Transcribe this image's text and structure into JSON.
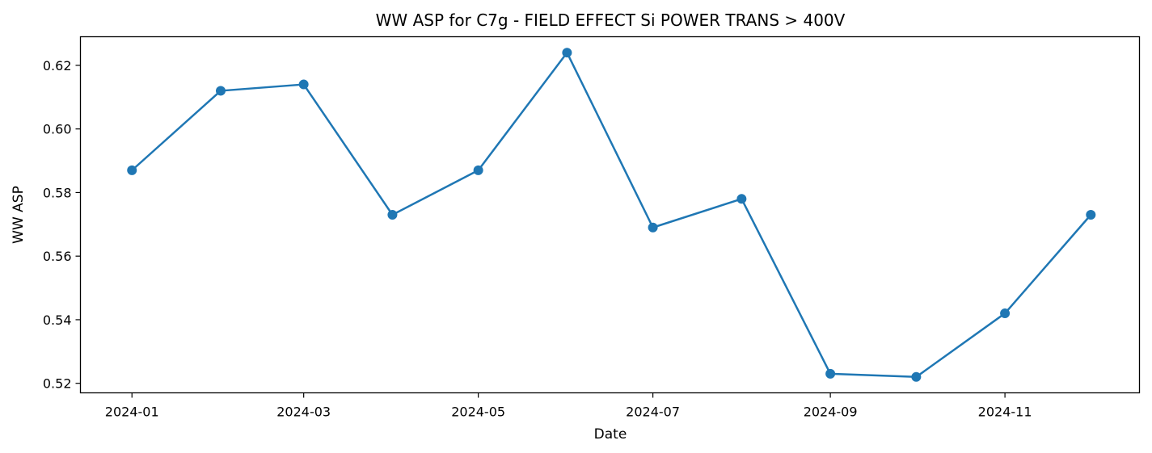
{
  "chart_data": {
    "type": "line",
    "title": "WW ASP for C7g - FIELD EFFECT Si POWER TRANS > 400V",
    "xlabel": "Date",
    "ylabel": "WW ASP",
    "x": [
      "2024-01-01",
      "2024-02-01",
      "2024-03-01",
      "2024-04-01",
      "2024-05-01",
      "2024-06-01",
      "2024-07-01",
      "2024-08-01",
      "2024-09-01",
      "2024-10-01",
      "2024-11-01",
      "2024-12-01"
    ],
    "series": [
      {
        "values": [
          0.587,
          0.612,
          0.614,
          0.573,
          0.587,
          0.624,
          0.569,
          0.578,
          0.523,
          0.522,
          0.542,
          0.573
        ]
      }
    ],
    "ylim": [
      0.517,
      0.629
    ],
    "xlim": [
      "2023-12-14",
      "2024-12-18"
    ],
    "x_ticks": [
      "2024-01",
      "2024-03",
      "2024-05",
      "2024-07",
      "2024-09",
      "2024-11"
    ],
    "y_ticks": [
      0.52,
      0.54,
      0.56,
      0.58,
      0.6,
      0.62
    ],
    "y_tick_labels": [
      "0.52",
      "0.54",
      "0.56",
      "0.58",
      "0.60",
      "0.62"
    ],
    "grid": false,
    "markers": true,
    "color": "#1f77b4"
  }
}
